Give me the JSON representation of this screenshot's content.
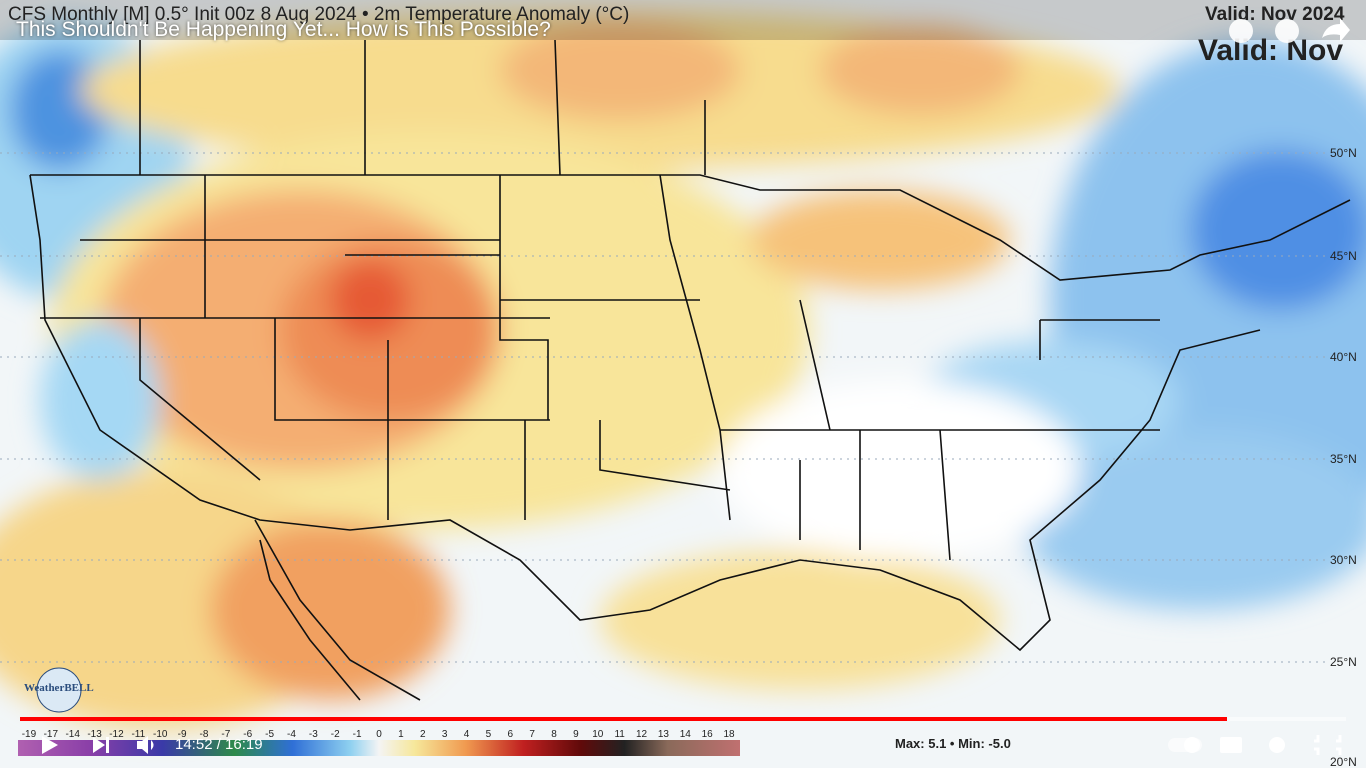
{
  "video": {
    "title": "This Shouldn't Be Happening Yet... How is This Possible?",
    "time": "14:52 / 16:19"
  },
  "map": {
    "header": "CFS Monthly [M] 0.5° Init 00z 8 Aug 2024 • 2m Temperature Anomaly (°C)",
    "valid_small": "Valid: Nov 2024",
    "valid_large": "Valid: Nov",
    "latitudes": [
      "50°N",
      "45°N",
      "40°N",
      "35°N",
      "30°N",
      "25°N",
      "20°N"
    ],
    "colorbar": [
      -19,
      -17,
      -14,
      -13,
      -12,
      -11,
      -10,
      -9,
      -8,
      -7,
      -6,
      -5,
      -4,
      -3,
      -2,
      -1,
      0,
      1,
      2,
      3,
      4,
      5,
      6,
      7,
      8,
      9,
      10,
      11,
      12,
      13,
      14,
      16,
      18
    ],
    "stats": "Max: 5.1 • Min: -5.0",
    "logo": "WeatherBELL"
  }
}
